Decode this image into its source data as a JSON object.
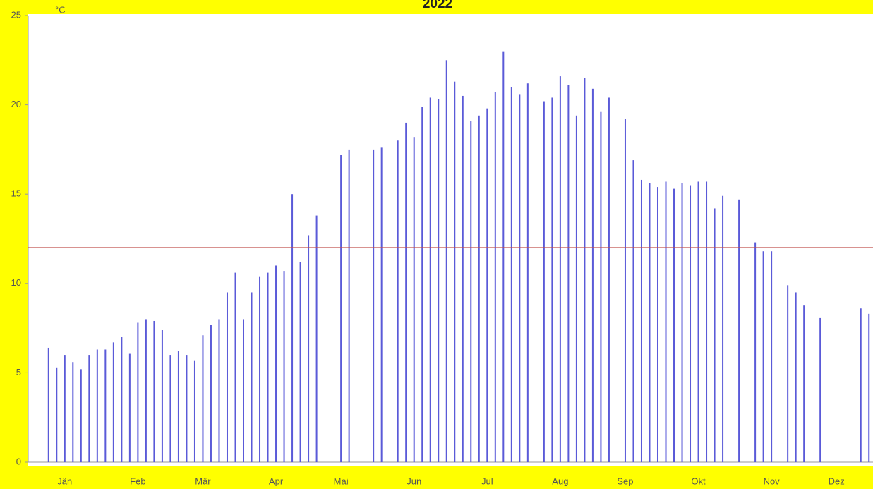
{
  "chart_data": {
    "type": "bar",
    "title": "2022",
    "y_unit": "°C",
    "categories": [
      null,
      null,
      null,
      null,
      "Jän",
      null,
      null,
      null,
      null,
      null,
      null,
      null,
      null,
      "Feb",
      null,
      null,
      null,
      null,
      null,
      null,
      null,
      "Mär",
      null,
      null,
      null,
      null,
      null,
      null,
      null,
      null,
      "Apr",
      null,
      null,
      null,
      null,
      null,
      null,
      null,
      "Mai",
      null,
      null,
      null,
      null,
      null,
      null,
      null,
      null,
      "Jun",
      null,
      null,
      null,
      null,
      null,
      null,
      null,
      null,
      "Jul",
      null,
      null,
      null,
      null,
      null,
      null,
      null,
      null,
      "Aug",
      null,
      null,
      null,
      null,
      null,
      null,
      null,
      "Sep",
      null,
      null,
      null,
      null,
      null,
      null,
      null,
      null,
      "Okt",
      null,
      null,
      null,
      null,
      null,
      null,
      null,
      null,
      "Nov",
      null,
      null,
      null,
      null,
      null,
      null,
      null,
      "Dez",
      null,
      null,
      null,
      null
    ],
    "values": [
      null,
      null,
      6.4,
      5.3,
      6.0,
      5.6,
      5.2,
      6.0,
      6.3,
      6.3,
      6.7,
      7.0,
      6.1,
      7.8,
      8.0,
      7.9,
      7.4,
      6.0,
      6.2,
      6.0,
      5.7,
      7.1,
      7.7,
      8.0,
      9.5,
      10.6,
      8.0,
      9.5,
      10.4,
      10.6,
      11.0,
      10.7,
      15.0,
      11.2,
      12.7,
      13.8,
      null,
      null,
      17.2,
      17.5,
      null,
      null,
      17.5,
      17.6,
      null,
      18.0,
      19.0,
      18.2,
      19.9,
      20.4,
      20.3,
      22.5,
      21.3,
      20.5,
      19.1,
      19.4,
      19.8,
      20.7,
      23.0,
      21.0,
      20.6,
      21.2,
      null,
      20.2,
      20.4,
      21.6,
      21.1,
      19.4,
      21.5,
      20.9,
      19.6,
      20.4,
      null,
      19.2,
      16.9,
      15.8,
      15.6,
      15.4,
      15.7,
      15.3,
      15.6,
      15.5,
      15.7,
      15.7,
      14.2,
      14.9,
      null,
      14.7,
      null,
      12.3,
      11.8,
      11.8,
      null,
      9.9,
      9.5,
      8.8,
      null,
      8.1,
      null,
      null,
      null,
      null,
      8.6,
      8.3
    ],
    "color": "#5a5ad8",
    "reference_line": 12,
    "reference_color": "#c0504d",
    "ylim": [
      0,
      25
    ],
    "yticks": [
      0,
      5,
      10,
      15,
      20,
      25
    ]
  }
}
